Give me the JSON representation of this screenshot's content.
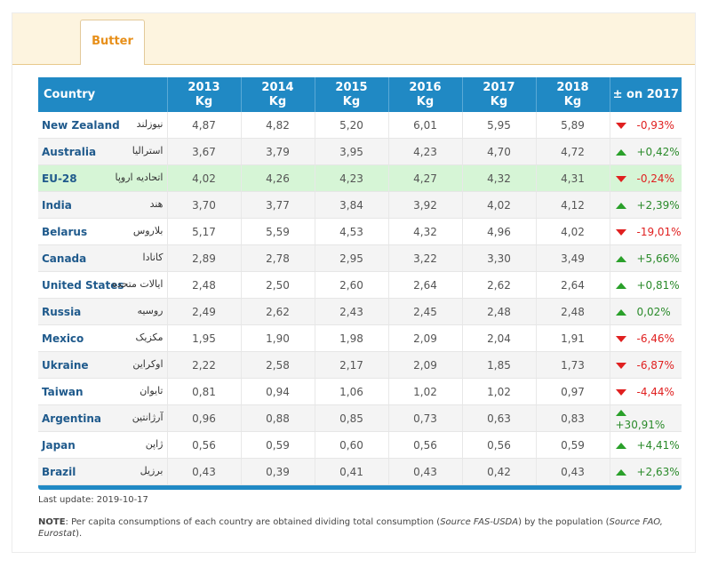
{
  "tabs": [
    {
      "label": "Butter",
      "active": true
    }
  ],
  "columns": [
    "Country",
    "2013\nKg",
    "2014\nKg",
    "2015\nKg",
    "2016\nKg",
    "2017\nKg",
    "2018\nKg",
    "± on 2017"
  ],
  "column_lines": [
    [
      "Country"
    ],
    [
      "2013",
      "Kg"
    ],
    [
      "2014",
      "Kg"
    ],
    [
      "2015",
      "Kg"
    ],
    [
      "2016",
      "Kg"
    ],
    [
      "2017",
      "Kg"
    ],
    [
      "2018",
      "Kg"
    ],
    [
      "± on 2017"
    ]
  ],
  "rows": [
    {
      "country": "New Zealand",
      "fa": "نیوزلند",
      "v": [
        "4,87",
        "4,82",
        "5,20",
        "6,01",
        "5,95",
        "5,89"
      ],
      "change": "-0,93%",
      "dir": "down"
    },
    {
      "country": "Australia",
      "fa": "استرالیا",
      "v": [
        "3,67",
        "3,79",
        "3,95",
        "4,23",
        "4,70",
        "4,72"
      ],
      "change": "+0,42%",
      "dir": "up"
    },
    {
      "country": "EU-28",
      "fa": "اتحادیه اروپا",
      "v": [
        "4,02",
        "4,26",
        "4,23",
        "4,27",
        "4,32",
        "4,31"
      ],
      "change": "-0,24%",
      "dir": "down",
      "highlight": true
    },
    {
      "country": "India",
      "fa": "هند",
      "v": [
        "3,70",
        "3,77",
        "3,84",
        "3,92",
        "4,02",
        "4,12"
      ],
      "change": "+2,39%",
      "dir": "up"
    },
    {
      "country": "Belarus",
      "fa": "بلاروس",
      "v": [
        "5,17",
        "5,59",
        "4,53",
        "4,32",
        "4,96",
        "4,02"
      ],
      "change": "-19,01%",
      "dir": "down"
    },
    {
      "country": "Canada",
      "fa": "کانادا",
      "v": [
        "2,89",
        "2,78",
        "2,95",
        "3,22",
        "3,30",
        "3,49"
      ],
      "change": "+5,66%",
      "dir": "up"
    },
    {
      "country": "United States",
      "fa": "ایالات متحده",
      "v": [
        "2,48",
        "2,50",
        "2,60",
        "2,64",
        "2,62",
        "2,64"
      ],
      "change": "+0,81%",
      "dir": "up"
    },
    {
      "country": "Russia",
      "fa": "روسیه",
      "v": [
        "2,49",
        "2,62",
        "2,43",
        "2,45",
        "2,48",
        "2,48"
      ],
      "change": "0,02%",
      "dir": "up"
    },
    {
      "country": "Mexico",
      "fa": "مکزیک",
      "v": [
        "1,95",
        "1,90",
        "1,98",
        "2,09",
        "2,04",
        "1,91"
      ],
      "change": "-6,46%",
      "dir": "down"
    },
    {
      "country": "Ukraine",
      "fa": "اوکراین",
      "v": [
        "2,22",
        "2,58",
        "2,17",
        "2,09",
        "1,85",
        "1,73"
      ],
      "change": "-6,87%",
      "dir": "down"
    },
    {
      "country": "Taiwan",
      "fa": "تایوان",
      "v": [
        "0,81",
        "0,94",
        "1,06",
        "1,02",
        "1,02",
        "0,97"
      ],
      "change": "-4,44%",
      "dir": "down"
    },
    {
      "country": "Argentina",
      "fa": "آرژانتین",
      "v": [
        "0,96",
        "0,88",
        "0,85",
        "0,73",
        "0,63",
        "0,83"
      ],
      "change": "+30,91%",
      "dir": "up"
    },
    {
      "country": "Japan",
      "fa": "ژاپن",
      "v": [
        "0,56",
        "0,59",
        "0,60",
        "0,56",
        "0,56",
        "0,59"
      ],
      "change": "+4,41%",
      "dir": "up"
    },
    {
      "country": "Brazil",
      "fa": "برزیل",
      "v": [
        "0,43",
        "0,39",
        "0,41",
        "0,43",
        "0,42",
        "0,43"
      ],
      "change": "+2,63%",
      "dir": "up"
    }
  ],
  "last_update": "Last update: 2019-10-17",
  "note": {
    "label": "NOTE",
    "t1": ": Per capita consumptions of each country are obtained dividing total consumption (",
    "s1": "Source FAS-USDA",
    "t2": ") by the population (",
    "s2": "Source FAO, Eurostat",
    "t3": ")."
  },
  "colors": {
    "header": "#2089c4",
    "highlight": "#d6f5d6",
    "down": "#e02020",
    "up": "#2aa02a",
    "tab": "#e78f1a"
  }
}
